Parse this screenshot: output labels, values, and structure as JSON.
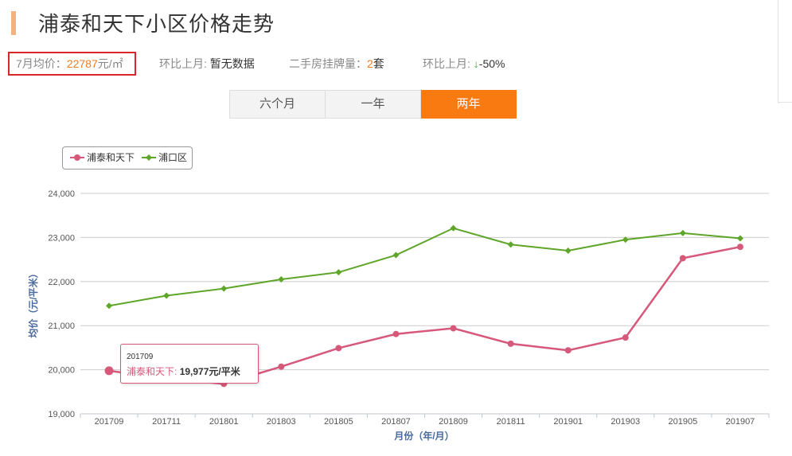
{
  "header": {
    "title": "浦泰和天下小区价格走势"
  },
  "stats": {
    "avg_price_label": "7月均价：",
    "avg_price_value": "22787",
    "avg_price_unit": "元/㎡",
    "mom_label": "环比上月:",
    "mom_value": "暂无数据",
    "listings_label": "二手房挂牌量：",
    "listings_value": "2",
    "listings_unit": "套",
    "mom2_label": "环比上月:",
    "mom2_arrow": "↓",
    "mom2_value": "-50%"
  },
  "tabs": [
    {
      "label": "六个月",
      "active": false
    },
    {
      "label": "一年",
      "active": false
    },
    {
      "label": "两年",
      "active": true
    }
  ],
  "tooltip": {
    "month": "201709",
    "series": "浦泰和天下:",
    "value": "19,977元/平米"
  },
  "colors": {
    "series1": "#d6587a",
    "series2": "#5ea52a",
    "accent": "#f97a10"
  },
  "chart_data": {
    "type": "line",
    "xlabel": "月份（年/月）",
    "ylabel": "均价（元/平米）",
    "ylim": [
      19000,
      24000
    ],
    "yticks": [
      "19,000",
      "20,000",
      "21,000",
      "22,000",
      "23,000",
      "24,000"
    ],
    "grid": true,
    "legend_position": "top-left",
    "x": [
      "201709",
      "201711",
      "201801",
      "201803",
      "201805",
      "201807",
      "201809",
      "201811",
      "201901",
      "201903",
      "201905",
      "201907"
    ],
    "series": [
      {
        "name": "浦泰和天下",
        "color": "#d6587a",
        "values": [
          19977,
          19800,
          19680,
          20070,
          20490,
          20810,
          20940,
          20590,
          20440,
          20730,
          22530,
          22787
        ]
      },
      {
        "name": "浦口区",
        "color": "#5ea52a",
        "values": [
          21450,
          21680,
          21840,
          22050,
          22210,
          22600,
          23210,
          22840,
          22700,
          22950,
          23100,
          22980
        ]
      }
    ]
  }
}
